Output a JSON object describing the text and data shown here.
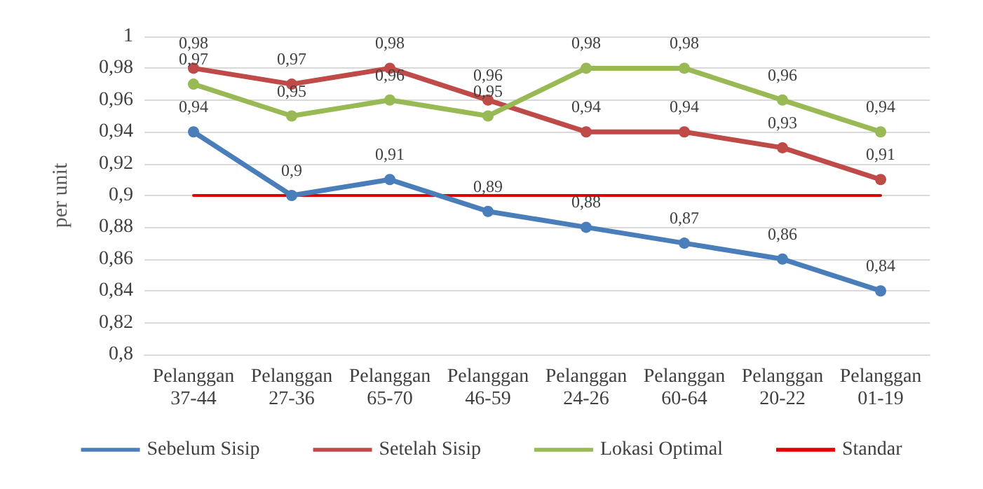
{
  "chart_data": {
    "type": "line",
    "ylabel": "per unit",
    "categories": [
      "Pelanggan\n37-44",
      "Pelanggan\n27-36",
      "Pelanggan\n65-70",
      "Pelanggan\n46-59",
      "Pelanggan\n24-26",
      "Pelanggan\n60-64",
      "Pelanggan\n20-22",
      "Pelanggan\n01-19"
    ],
    "series": [
      {
        "name": "Sebelum Sisip",
        "color": "#4a7ebb",
        "values": [
          0.94,
          0.9,
          0.91,
          0.89,
          0.88,
          0.87,
          0.86,
          0.84
        ],
        "value_labels": [
          "0,94",
          "0,9",
          "0,91",
          "0,89",
          "0,88",
          "0,87",
          "0,86",
          "0,84"
        ]
      },
      {
        "name": "Setelah Sisip",
        "color": "#be4b48",
        "values": [
          0.98,
          0.97,
          0.98,
          0.96,
          0.94,
          0.94,
          0.93,
          0.91
        ],
        "value_labels": [
          "0,98",
          "0,97",
          "0,98",
          "0,96",
          "0,94",
          "0,94",
          "0,93",
          "0,91"
        ]
      },
      {
        "name": "Lokasi Optimal",
        "color": "#98b954",
        "values": [
          0.97,
          0.95,
          0.96,
          0.95,
          0.98,
          0.98,
          0.96,
          0.94
        ],
        "value_labels": [
          "0,97",
          "0,95",
          "0,96",
          "0,95",
          "0,98",
          "0,98",
          "0,96",
          "0,94"
        ]
      },
      {
        "name": "Standar",
        "color": "#e00000",
        "marker": "none",
        "values": [
          0.9,
          0.9,
          0.9,
          0.9,
          0.9,
          0.9,
          0.9,
          0.9
        ]
      }
    ],
    "ylim": [
      0.8,
      1
    ],
    "yticks": [
      {
        "value": 0.8,
        "label": "0,8"
      },
      {
        "value": 0.82,
        "label": "0,82"
      },
      {
        "value": 0.84,
        "label": "0,84"
      },
      {
        "value": 0.86,
        "label": "0,86"
      },
      {
        "value": 0.88,
        "label": "0,88"
      },
      {
        "value": 0.9,
        "label": "0,9"
      },
      {
        "value": 0.92,
        "label": "0,92"
      },
      {
        "value": 0.94,
        "label": "0,94"
      },
      {
        "value": 0.96,
        "label": "0,96"
      },
      {
        "value": 0.98,
        "label": "0,98"
      },
      {
        "value": 1,
        "label": "1"
      }
    ],
    "grid": "y",
    "legend": "bottom",
    "marker": "circle",
    "line_style": "solid"
  }
}
